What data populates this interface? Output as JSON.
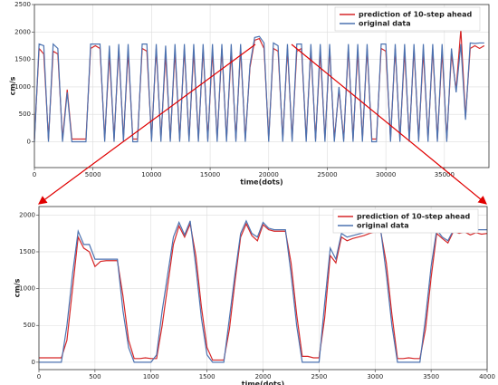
{
  "chart_data": [
    {
      "type": "line",
      "xlabel": "time(dots)",
      "ylabel": "cm/s",
      "grid": true,
      "legend": "upper right",
      "xlim": [
        0,
        38800
      ],
      "ylim": [
        -470,
        2500
      ],
      "xticks": [
        0,
        5000,
        10000,
        15000,
        20000,
        25000,
        30000,
        35000
      ],
      "yticks": [
        0,
        500,
        1000,
        1500,
        2000,
        2500
      ],
      "x": [
        0,
        400,
        800,
        1200,
        1600,
        2000,
        2400,
        2800,
        3200,
        3600,
        4000,
        4400,
        4800,
        5200,
        5600,
        6000,
        6400,
        6800,
        7200,
        7600,
        8000,
        8400,
        8800,
        9200,
        9600,
        10000,
        10400,
        10800,
        11200,
        11600,
        12000,
        12400,
        12800,
        13200,
        13600,
        14000,
        14400,
        14800,
        15200,
        15600,
        16000,
        16400,
        16800,
        17200,
        17600,
        18000,
        18400,
        18800,
        19200,
        19600,
        20000,
        20400,
        20800,
        21200,
        21600,
        22000,
        22400,
        22800,
        23200,
        23600,
        24000,
        24400,
        24800,
        25200,
        25600,
        26000,
        26400,
        26800,
        27200,
        27600,
        28000,
        28400,
        28800,
        29200,
        29600,
        30000,
        30400,
        30800,
        31200,
        31600,
        32000,
        32400,
        32800,
        33200,
        33600,
        34000,
        34400,
        34800,
        35200,
        35600,
        36000,
        36400,
        36800,
        37200,
        37600,
        38000,
        38400
      ],
      "series": [
        {
          "name": "prediction of 10-step ahead",
          "color": "#d62728",
          "values": [
            50,
            1700,
            1600,
            50,
            1650,
            1600,
            50,
            950,
            50,
            50,
            50,
            50,
            1700,
            1750,
            1700,
            50,
            1600,
            50,
            1700,
            50,
            1650,
            50,
            50,
            1700,
            1650,
            50,
            1700,
            50,
            1600,
            50,
            1650,
            50,
            1700,
            50,
            1650,
            50,
            1700,
            50,
            1650,
            50,
            1700,
            50,
            1650,
            50,
            1700,
            50,
            1350,
            1850,
            1880,
            1700,
            50,
            1700,
            1650,
            50,
            1700,
            50,
            1650,
            1700,
            50,
            1700,
            50,
            1650,
            50,
            1700,
            50,
            950,
            50,
            1700,
            50,
            1650,
            50,
            1700,
            50,
            50,
            1700,
            1650,
            50,
            1700,
            50,
            1650,
            50,
            1700,
            50,
            1650,
            50,
            1700,
            50,
            1650,
            50,
            1600,
            950,
            2050,
            450,
            1700,
            1750,
            1700,
            1750
          ]
        },
        {
          "name": "original data",
          "color": "#4c72b0",
          "values": [
            0,
            1780,
            1750,
            0,
            1780,
            1700,
            0,
            900,
            0,
            0,
            0,
            0,
            1780,
            1780,
            1780,
            0,
            1750,
            0,
            1780,
            0,
            1780,
            0,
            0,
            1780,
            1780,
            0,
            1780,
            0,
            1750,
            0,
            1780,
            0,
            1780,
            0,
            1780,
            0,
            1780,
            0,
            1780,
            0,
            1780,
            0,
            1780,
            0,
            1780,
            0,
            1400,
            1900,
            1920,
            1800,
            0,
            1800,
            1750,
            0,
            1780,
            0,
            1780,
            1780,
            0,
            1780,
            0,
            1780,
            0,
            1780,
            0,
            1000,
            0,
            1780,
            0,
            1780,
            0,
            1780,
            0,
            0,
            1780,
            1780,
            0,
            1780,
            0,
            1780,
            0,
            1780,
            0,
            1780,
            0,
            1780,
            0,
            1780,
            0,
            1700,
            900,
            1780,
            400,
            1800,
            1790,
            1800,
            1800
          ]
        }
      ]
    },
    {
      "type": "line",
      "xlabel": "time(dots)",
      "ylabel": "cm/s",
      "grid": true,
      "legend": "upper right",
      "xlim": [
        0,
        4000
      ],
      "ylim": [
        -100,
        2115
      ],
      "xticks": [
        0,
        500,
        1000,
        1500,
        2000,
        2500,
        3000,
        3500,
        4000
      ],
      "yticks": [
        0,
        500,
        1000,
        1500,
        2000
      ],
      "x": [
        0,
        50,
        100,
        150,
        200,
        250,
        300,
        350,
        400,
        450,
        500,
        550,
        600,
        650,
        700,
        750,
        800,
        850,
        900,
        950,
        1000,
        1050,
        1100,
        1150,
        1200,
        1250,
        1300,
        1350,
        1400,
        1450,
        1500,
        1550,
        1600,
        1650,
        1700,
        1750,
        1800,
        1850,
        1900,
        1950,
        2000,
        2050,
        2100,
        2150,
        2200,
        2250,
        2300,
        2350,
        2400,
        2450,
        2500,
        2550,
        2600,
        2650,
        2700,
        2750,
        2800,
        2850,
        2900,
        2950,
        3000,
        3050,
        3100,
        3150,
        3200,
        3250,
        3300,
        3350,
        3400,
        3450,
        3500,
        3550,
        3600,
        3650,
        3700,
        3750,
        3800,
        3850,
        3900,
        3950,
        4000
      ],
      "series": [
        {
          "name": "prediction of 10-step ahead",
          "color": "#d62728",
          "values": [
            60,
            60,
            60,
            60,
            60,
            300,
            1000,
            1700,
            1550,
            1500,
            1300,
            1370,
            1380,
            1380,
            1380,
            900,
            300,
            50,
            50,
            60,
            50,
            50,
            500,
            1050,
            1600,
            1850,
            1700,
            1880,
            1450,
            750,
            200,
            30,
            30,
            30,
            450,
            1100,
            1700,
            1880,
            1720,
            1650,
            1870,
            1800,
            1780,
            1780,
            1780,
            1350,
            650,
            80,
            80,
            60,
            60,
            600,
            1450,
            1350,
            1700,
            1650,
            1680,
            1700,
            1720,
            1750,
            1770,
            1780,
            1350,
            650,
            50,
            50,
            60,
            50,
            50,
            450,
            1150,
            1750,
            1680,
            1620,
            1780,
            1750,
            1770,
            1730,
            1760,
            1740,
            1750
          ]
        },
        {
          "name": "original data",
          "color": "#4c72b0",
          "values": [
            0,
            0,
            0,
            0,
            0,
            500,
            1200,
            1780,
            1600,
            1600,
            1400,
            1400,
            1400,
            1400,
            1400,
            700,
            200,
            0,
            0,
            0,
            0,
            100,
            700,
            1200,
            1700,
            1900,
            1730,
            1920,
            1300,
            600,
            100,
            0,
            0,
            0,
            600,
            1200,
            1750,
            1920,
            1750,
            1700,
            1900,
            1820,
            1800,
            1800,
            1800,
            1200,
            500,
            0,
            0,
            0,
            0,
            800,
            1550,
            1400,
            1750,
            1700,
            1720,
            1740,
            1760,
            1780,
            1800,
            1800,
            1200,
            500,
            0,
            0,
            0,
            0,
            0,
            600,
            1300,
            1800,
            1700,
            1650,
            1800,
            1800,
            1800,
            1800,
            1800,
            1800,
            1800
          ]
        }
      ]
    }
  ]
}
